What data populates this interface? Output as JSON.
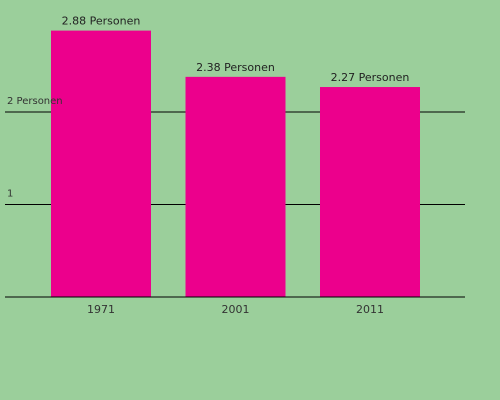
{
  "chart_data": {
    "type": "bar",
    "title": "",
    "xlabel": "",
    "ylabel": "",
    "categories": [
      "1971",
      "2001",
      "2011"
    ],
    "values": [
      2.88,
      2.38,
      2.27
    ],
    "data_labels": [
      "2.88 Personen",
      "2.38 Personen",
      "2.27 Personen"
    ],
    "y_ticks": [
      {
        "value": 1,
        "label": "1"
      },
      {
        "value": 2,
        "label": "2 Personen"
      }
    ],
    "ylim": [
      0,
      3
    ],
    "grid": true,
    "colors": {
      "background": "#9bcf9b",
      "bar": "#ec008c",
      "gridline": "#000000"
    }
  }
}
